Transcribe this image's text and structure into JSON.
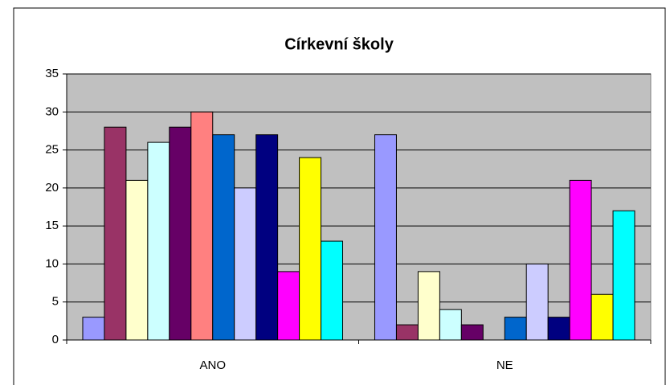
{
  "chart_data": {
    "type": "bar",
    "title": "Církevní školy",
    "categories": [
      "ANO",
      "NE"
    ],
    "series": [
      {
        "color": "#9999FF",
        "values": [
          3,
          27
        ]
      },
      {
        "color": "#993366",
        "values": [
          28,
          2
        ]
      },
      {
        "color": "#FFFFCC",
        "values": [
          21,
          9
        ]
      },
      {
        "color": "#CCFFFF",
        "values": [
          26,
          4
        ]
      },
      {
        "color": "#660066",
        "values": [
          28,
          2
        ]
      },
      {
        "color": "#FF8080",
        "values": [
          30,
          0
        ]
      },
      {
        "color": "#0066CC",
        "values": [
          27,
          3
        ]
      },
      {
        "color": "#CCCCFF",
        "values": [
          20,
          10
        ]
      },
      {
        "color": "#000080",
        "values": [
          27,
          3
        ]
      },
      {
        "color": "#FF00FF",
        "values": [
          9,
          21
        ]
      },
      {
        "color": "#FFFF00",
        "values": [
          24,
          6
        ]
      },
      {
        "color": "#00FFFF",
        "values": [
          13,
          17
        ]
      }
    ],
    "ylim": [
      0,
      35
    ],
    "yticks": [
      0,
      5,
      10,
      15,
      20,
      25,
      30,
      35
    ],
    "grid": true,
    "plot_background": "#C0C0C0"
  }
}
